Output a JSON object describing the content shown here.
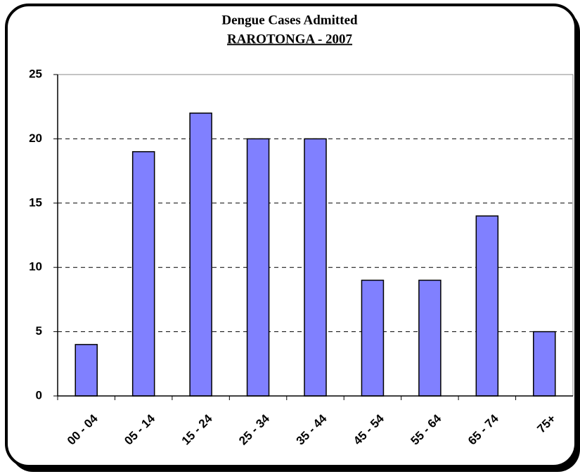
{
  "chart_data": {
    "type": "bar",
    "title": "Dengue Cases Admitted",
    "subtitle": "RAROTONGA - 2007",
    "categories": [
      "00 - 04",
      "05 - 14",
      "15 - 24",
      "25 - 34",
      "35 - 44",
      "45 - 54",
      "55 - 64",
      "65 - 74",
      "75+"
    ],
    "values": [
      4,
      19,
      22,
      20,
      20,
      9,
      9,
      14,
      5
    ],
    "color": "#8080ff",
    "ylim": [
      0,
      25
    ],
    "yticks": [
      0,
      5,
      10,
      15,
      20,
      25
    ],
    "grid": true
  }
}
